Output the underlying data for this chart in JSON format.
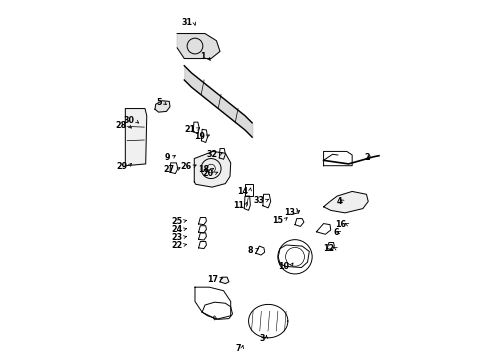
{
  "bg_color": "#ffffff",
  "line_color": "#000000",
  "labels_data": {
    "1": [
      0.395,
      0.845,
      0.014,
      -0.018
    ],
    "2": [
      0.853,
      0.562,
      -0.018,
      0.01
    ],
    "3": [
      0.56,
      0.056,
      0.0,
      0.018
    ],
    "4": [
      0.775,
      0.44,
      -0.015,
      0.01
    ],
    "5": [
      0.27,
      0.718,
      0.012,
      -0.008
    ],
    "6": [
      0.768,
      0.352,
      -0.018,
      0.008
    ],
    "7": [
      0.492,
      0.028,
      0.005,
      0.018
    ],
    "8": [
      0.528,
      0.302,
      0.012,
      0.008
    ],
    "9": [
      0.295,
      0.562,
      0.012,
      0.008
    ],
    "10": [
      0.628,
      0.258,
      0.012,
      0.018
    ],
    "11": [
      0.503,
      0.428,
      0.003,
      0.012
    ],
    "12": [
      0.755,
      0.308,
      -0.014,
      0.008
    ],
    "13": [
      0.645,
      0.408,
      0.01,
      0.008
    ],
    "14": [
      0.514,
      0.468,
      0.002,
      0.012
    ],
    "15": [
      0.61,
      0.388,
      0.01,
      0.008
    ],
    "16": [
      0.788,
      0.375,
      -0.015,
      0.008
    ],
    "17": [
      0.428,
      0.222,
      0.012,
      0.005
    ],
    "18": [
      0.404,
      0.528,
      0.01,
      0.005
    ],
    "19": [
      0.392,
      0.622,
      0.01,
      0.005
    ],
    "20": [
      0.415,
      0.518,
      0.01,
      0.005
    ],
    "21": [
      0.365,
      0.642,
      0.01,
      0.005
    ],
    "22": [
      0.328,
      0.318,
      0.018,
      0.004
    ],
    "23": [
      0.328,
      0.34,
      0.018,
      0.004
    ],
    "24": [
      0.328,
      0.362,
      0.018,
      0.004
    ],
    "25": [
      0.328,
      0.385,
      0.018,
      0.004
    ],
    "26": [
      0.355,
      0.538,
      0.01,
      0.005
    ],
    "27": [
      0.308,
      0.528,
      0.012,
      0.008
    ],
    "28": [
      0.174,
      0.652,
      0.01,
      -0.008
    ],
    "29": [
      0.174,
      0.538,
      0.01,
      0.01
    ],
    "30": [
      0.194,
      0.666,
      0.01,
      -0.008
    ],
    "31": [
      0.358,
      0.942,
      0.005,
      -0.018
    ],
    "32": [
      0.428,
      0.572,
      0.01,
      0.005
    ],
    "33": [
      0.558,
      0.442,
      0.01,
      0.005
    ]
  }
}
